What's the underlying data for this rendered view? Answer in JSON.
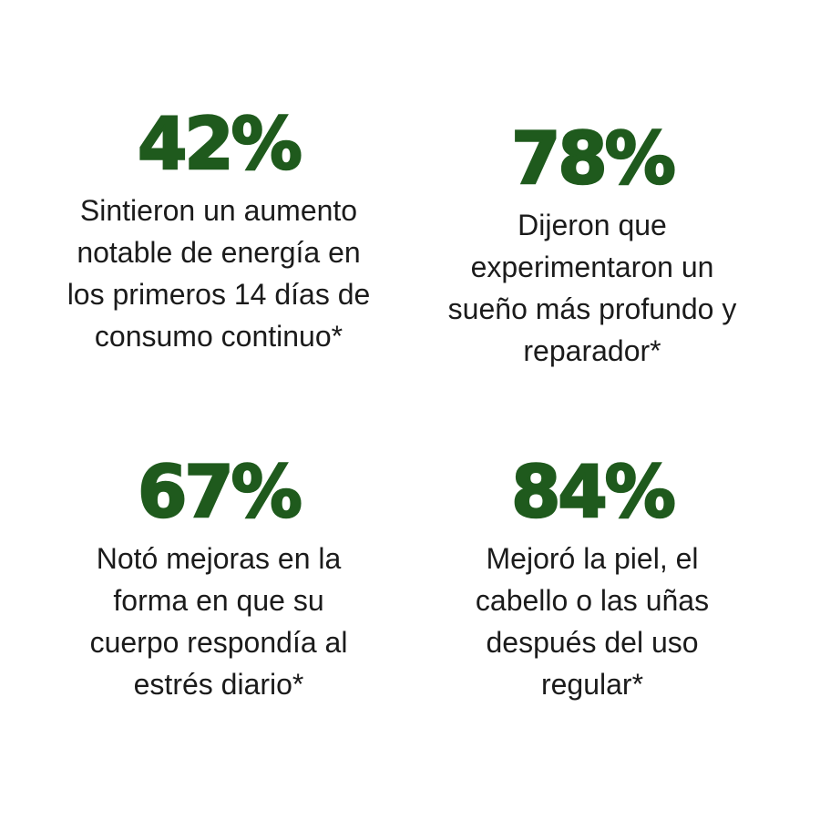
{
  "theme": {
    "accent_color": "#1f5a1d",
    "text_color": "#1b1b1b",
    "background_color": "#ffffff"
  },
  "stats": [
    {
      "value": "42%",
      "description": "Sintieron un aumento notable de energía en los primeros 14 días de consumo continuo*"
    },
    {
      "value": "78%",
      "description": "Dijeron que experimentaron un sueño más profundo y reparador*"
    },
    {
      "value": "67%",
      "description": "Notó mejoras en la forma en que su cuerpo respondía al estrés diario*"
    },
    {
      "value": "84%",
      "description": "Mejoró la piel, el cabello o las uñas después del uso regular*"
    }
  ]
}
